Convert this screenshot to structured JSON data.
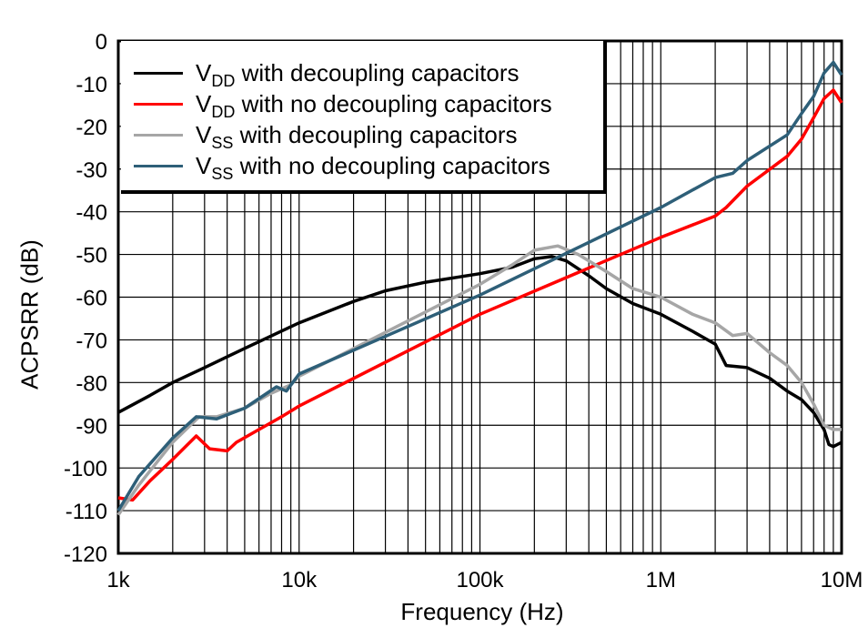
{
  "chart_data": {
    "type": "line",
    "title": "",
    "xlabel": "Frequency (Hz)",
    "ylabel": "ACPSRR (dB)",
    "xscale": "log",
    "xlim": [
      1000,
      10000000
    ],
    "ylim": [
      -120,
      0
    ],
    "grid": true,
    "legend_placement": "top-left",
    "x_tick_labels": [
      {
        "value": 1000,
        "label": "1k"
      },
      {
        "value": 10000,
        "label": "10k"
      },
      {
        "value": 100000,
        "label": "100k"
      },
      {
        "value": 1000000,
        "label": "1M"
      },
      {
        "value": 10000000,
        "label": "10M"
      }
    ],
    "y_tick_labels": [
      {
        "value": 0,
        "label": "0"
      },
      {
        "value": -10,
        "label": "-10"
      },
      {
        "value": -20,
        "label": "-20"
      },
      {
        "value": -30,
        "label": "-30"
      },
      {
        "value": -40,
        "label": "-40"
      },
      {
        "value": -50,
        "label": "-50"
      },
      {
        "value": -60,
        "label": "-60"
      },
      {
        "value": -70,
        "label": "-70"
      },
      {
        "value": -80,
        "label": "-80"
      },
      {
        "value": -90,
        "label": "-90"
      },
      {
        "value": -100,
        "label": "-100"
      },
      {
        "value": -110,
        "label": "-110"
      },
      {
        "value": -120,
        "label": "-120"
      }
    ],
    "series": [
      {
        "name": "VDD with decoupling capacitors",
        "label_main": "V",
        "label_sub": "DD",
        "label_rest": " with decoupling capacitors",
        "color": "#000000",
        "x": [
          1000,
          1500,
          2000,
          3000,
          5000,
          10000,
          20000,
          30000,
          50000,
          100000,
          150000,
          200000,
          250000,
          300000,
          400000,
          500000,
          700000,
          1000000,
          1500000,
          2000000,
          2300000,
          3000000,
          4000000,
          5000000,
          6000000,
          7000000,
          8000000,
          8500000,
          9000000,
          10000000
        ],
        "y": [
          -87,
          -83,
          -80,
          -76.5,
          -72,
          -66,
          -61,
          -58.5,
          -56.5,
          -54.5,
          -53,
          -51,
          -50.5,
          -51.5,
          -55,
          -58,
          -61.5,
          -64,
          -68,
          -71,
          -76,
          -76.5,
          -79,
          -82,
          -84,
          -87,
          -91,
          -94.5,
          -95,
          -94
        ]
      },
      {
        "name": "VDD with no decoupling capacitors",
        "label_main": "V",
        "label_sub": "DD",
        "label_rest": " with no decoupling capacitors",
        "color": "#ff0000",
        "x": [
          1000,
          1200,
          1500,
          2000,
          2700,
          3200,
          4000,
          4500,
          6000,
          8000,
          10000,
          100000,
          1000000,
          2000000,
          2300000,
          3000000,
          5000000,
          6000000,
          7000000,
          8000000,
          9000000,
          10000000
        ],
        "y": [
          -107,
          -107.5,
          -103,
          -98,
          -92.5,
          -95.5,
          -96,
          -94,
          -91,
          -88,
          -85.5,
          -64,
          -46,
          -41,
          -39,
          -34,
          -27,
          -23,
          -18,
          -13.5,
          -11.5,
          -14.5
        ]
      },
      {
        "name": "VSS with decoupling capacitors",
        "label_main": "V",
        "label_sub": "SS",
        "label_rest": " with decoupling capacitors",
        "color": "#a6a6a6",
        "x": [
          1000,
          1300,
          2000,
          2800,
          3500,
          5000,
          7000,
          9000,
          10000,
          100000,
          150000,
          200000,
          270000,
          350000,
          500000,
          700000,
          1000000,
          1500000,
          2000000,
          2500000,
          3000000,
          4000000,
          5000000,
          6000000,
          7000000,
          8000000,
          9000000,
          10000000
        ],
        "y": [
          -111,
          -104,
          -94,
          -88,
          -88,
          -86,
          -82.5,
          -80.5,
          -78.5,
          -57,
          -52.5,
          -49,
          -48,
          -50,
          -54,
          -58,
          -60,
          -64,
          -66,
          -69,
          -68.5,
          -73,
          -76,
          -80,
          -85,
          -90,
          -91,
          -91
        ]
      },
      {
        "name": "VSS with no decoupling capacitors",
        "label_main": "V",
        "label_sub": "SS",
        "label_rest": " with no decoupling capacitors",
        "color": "#2e5f78",
        "x": [
          1000,
          1300,
          2000,
          2700,
          3500,
          5000,
          7500,
          8500,
          10000,
          100000,
          1000000,
          2000000,
          2500000,
          3000000,
          5000000,
          6000000,
          7000000,
          8000000,
          9000000,
          10000000
        ],
        "y": [
          -110,
          -102,
          -93,
          -88,
          -88.5,
          -86,
          -81,
          -82,
          -78,
          -59.5,
          -39,
          -32,
          -31,
          -28,
          -22,
          -17,
          -13,
          -7.5,
          -5,
          -8
        ]
      }
    ]
  }
}
